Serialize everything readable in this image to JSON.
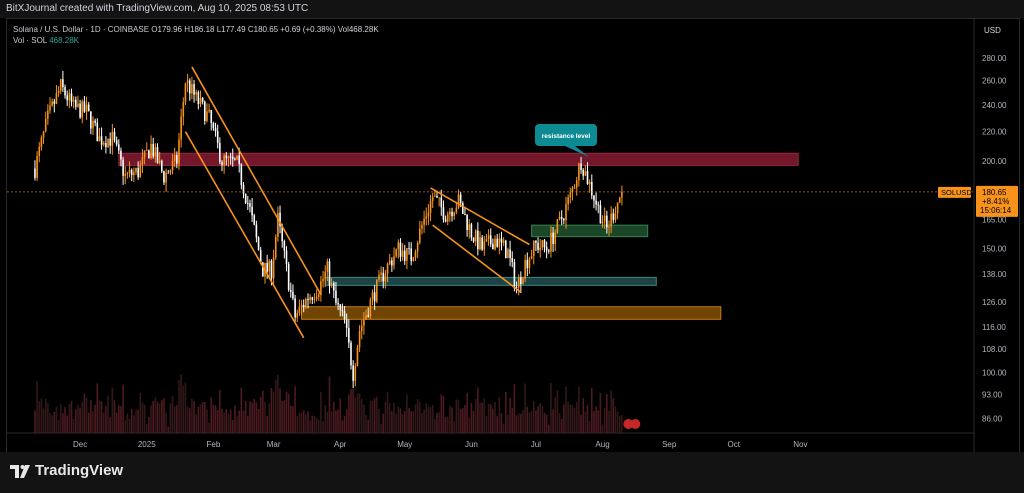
{
  "attribution": "BitXJournal created with TradingView.com, Aug 10, 2025 08:53 UTC",
  "legend": {
    "title": "Solana / U.S. Dollar · 1D · COINBASE",
    "open_label": "O",
    "open": "179.96",
    "high_label": "H",
    "high": "186.18",
    "low_label": "L",
    "low": "177.49",
    "close_label": "C",
    "close": "180.65",
    "change": "+0.69 (+0.38%)",
    "vol_label": "Vol",
    "vol": "468.28K",
    "vol_row_label": "Vol · SOL",
    "vol_row_value": "468.28K"
  },
  "currency": "USD",
  "price_label": {
    "symbol": "SOLUSD",
    "price": "180.65",
    "change": "+8.41%",
    "countdown": "15:06:14"
  },
  "annotation": {
    "text": "resistance level"
  },
  "brand": "TradingView",
  "colors": {
    "up": "#f7931a",
    "down": "#ffffff",
    "resistance_zone": "#7d1a2e",
    "support_green": "#1f4d2c",
    "support_teal": "#1f4a4a",
    "support_orange": "#7a4a05",
    "channel": "#f7931a",
    "callout": "#0e8a95"
  },
  "chart_data": {
    "type": "candlestick",
    "symbol": "SOLUSD",
    "timeframe": "1D",
    "exchange": "COINBASE",
    "x_tick_labels": [
      "Dec",
      "2025",
      "Feb",
      "Mar",
      "Apr",
      "May",
      "Jun",
      "Jul",
      "Aug",
      "Sep",
      "Oct",
      "Nov"
    ],
    "y_tick_labels": [
      "280.00",
      "260.00",
      "240.00",
      "220.00",
      "200.00",
      "165.00",
      "150.00",
      "138.00",
      "126.00",
      "116.00",
      "108.00",
      "100.00",
      "93.00",
      "86.00"
    ],
    "y_scale": "log",
    "ylim": [
      82,
      310
    ],
    "close_path": [
      [
        "2024-11-10",
        195
      ],
      [
        "2024-11-16",
        230
      ],
      [
        "2024-11-22",
        255
      ],
      [
        "2024-11-28",
        238
      ],
      [
        "2024-12-04",
        235
      ],
      [
        "2024-12-10",
        215
      ],
      [
        "2024-12-16",
        215
      ],
      [
        "2024-12-22",
        190
      ],
      [
        "2024-12-28",
        193
      ],
      [
        "2025-01-03",
        210
      ],
      [
        "2025-01-09",
        190
      ],
      [
        "2025-01-15",
        200
      ],
      [
        "2025-01-19",
        260
      ],
      [
        "2025-01-24",
        245
      ],
      [
        "2025-01-30",
        230
      ],
      [
        "2025-02-05",
        200
      ],
      [
        "2025-02-12",
        198
      ],
      [
        "2025-02-18",
        170
      ],
      [
        "2025-02-24",
        140
      ],
      [
        "2025-02-28",
        140
      ],
      [
        "2025-03-03",
        165
      ],
      [
        "2025-03-07",
        140
      ],
      [
        "2025-03-11",
        120
      ],
      [
        "2025-03-17",
        128
      ],
      [
        "2025-03-22",
        132
      ],
      [
        "2025-03-26",
        140
      ],
      [
        "2025-03-30",
        125
      ],
      [
        "2025-04-03",
        118
      ],
      [
        "2025-04-07",
        100
      ],
      [
        "2025-04-10",
        115
      ],
      [
        "2025-04-16",
        128
      ],
      [
        "2025-04-22",
        140
      ],
      [
        "2025-04-28",
        150
      ],
      [
        "2025-05-04",
        146
      ],
      [
        "2025-05-10",
        165
      ],
      [
        "2025-05-14",
        178
      ],
      [
        "2025-05-20",
        168
      ],
      [
        "2025-05-26",
        175
      ],
      [
        "2025-06-01",
        158
      ],
      [
        "2025-06-06",
        150
      ],
      [
        "2025-06-12",
        155
      ],
      [
        "2025-06-18",
        148
      ],
      [
        "2025-06-22",
        132
      ],
      [
        "2025-06-26",
        143
      ],
      [
        "2025-07-01",
        152
      ],
      [
        "2025-07-06",
        150
      ],
      [
        "2025-07-12",
        163
      ],
      [
        "2025-07-17",
        178
      ],
      [
        "2025-07-22",
        200
      ],
      [
        "2025-07-26",
        185
      ],
      [
        "2025-07-31",
        168
      ],
      [
        "2025-08-03",
        160
      ],
      [
        "2025-08-07",
        172
      ],
      [
        "2025-08-10",
        180.65
      ]
    ],
    "zones": [
      {
        "kind": "resistance",
        "low": 197,
        "high": 205,
        "from": "2024-12-19",
        "to": "2025-10-31"
      },
      {
        "kind": "support",
        "low": 156,
        "high": 162,
        "from": "2025-06-29",
        "to": "2025-08-22"
      },
      {
        "kind": "support",
        "low": 133,
        "high": 136.5,
        "from": "2025-03-25",
        "to": "2025-08-26"
      },
      {
        "kind": "support",
        "low": 119,
        "high": 124,
        "from": "2025-03-14",
        "to": "2025-09-25"
      }
    ],
    "channels": [
      {
        "upper": [
          [
            "2025-01-22",
            272
          ],
          [
            "2025-03-23",
            129
          ]
        ],
        "lower": [
          [
            "2025-01-19",
            220
          ],
          [
            "2025-03-15",
            112
          ]
        ]
      },
      {
        "upper": [
          [
            "2025-05-13",
            183
          ],
          [
            "2025-06-28",
            152
          ]
        ],
        "lower": [
          [
            "2025-05-14",
            162
          ],
          [
            "2025-06-24",
            130
          ]
        ]
      }
    ],
    "current_price": 180.65,
    "volume": {
      "unit": "SOL",
      "last": "468.28K"
    }
  }
}
